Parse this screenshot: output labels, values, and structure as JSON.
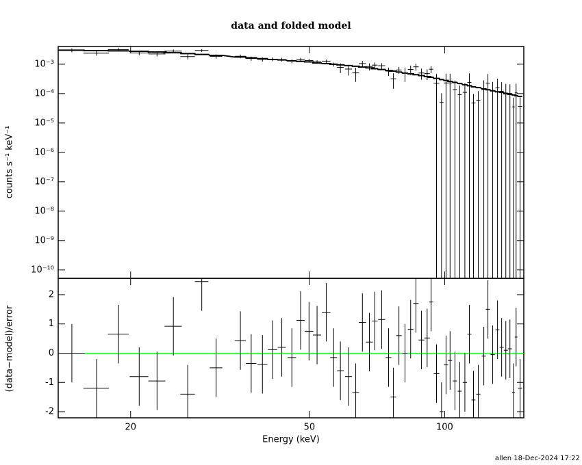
{
  "chart_data": [
    {
      "type": "errorbar",
      "title": "data and folded model",
      "ylabel": "counts s⁻¹ keV⁻¹",
      "xscale": "log",
      "yscale": "log",
      "color": "#000000",
      "model_color": "#000000",
      "x": [
        14.8,
        16.8,
        18.8,
        20.9,
        22.9,
        24.9,
        26.8,
        28.8,
        31.0,
        35.1,
        37.1,
        39.3,
        41.4,
        43.4,
        45.7,
        47.8,
        49.9,
        52.0,
        54.5,
        56.6,
        58.6,
        61.1,
        63.4,
        65.6,
        68.0,
        69.9,
        72.4,
        75.0,
        76.9,
        79.1,
        81.6,
        84.0,
        86.3,
        88.8,
        91.4,
        93.3,
        95.9,
        98.4,
        100.7,
        102.8,
        105.4,
        108.0,
        110.9,
        113.5,
        115.9,
        118.8,
        122.2,
        124.8,
        127.9,
        131.1,
        133.9,
        136.8,
        139.7,
        142.3,
        144.2,
        147.2
      ],
      "xerr": [
        1.0,
        1.1,
        1.0,
        1.0,
        1.0,
        1.1,
        1.0,
        1.0,
        1.0,
        1.0,
        1.0,
        1.0,
        1.0,
        0.9,
        1.0,
        1.0,
        1.1,
        1.1,
        1.2,
        1.0,
        1.0,
        1.1,
        1.1,
        1.2,
        1.2,
        1.0,
        1.3,
        1.1,
        1.1,
        1.1,
        1.1,
        1.2,
        1.2,
        1.3,
        1.3,
        1.0,
        1.4,
        1.0,
        1.1,
        1.1,
        1.1,
        1.1,
        1.2,
        1.2,
        1.2,
        1.3,
        1.3,
        1.3,
        1.4,
        1.4,
        1.4,
        1.4,
        1.5,
        1.0,
        1.0,
        1.6
      ],
      "values": [
        0.003,
        0.00238,
        0.00313,
        0.00242,
        0.00223,
        0.00279,
        0.00182,
        0.00294,
        0.00185,
        0.00186,
        0.00156,
        0.00146,
        0.00148,
        0.00144,
        0.00127,
        0.00146,
        0.00134,
        0.0012,
        0.00127,
        0.000978,
        0.000779,
        0.000684,
        0.000506,
        0.00105,
        0.000836,
        0.000931,
        0.000888,
        0.000583,
        0.000319,
        0.000637,
        0.0005,
        0.000663,
        0.000814,
        0.000502,
        0.000479,
        0.000675,
        0.000226,
        5e-05,
        0.00023,
        0.000231,
        0.000137,
        9.13e-05,
        0.00011,
        0.000239,
        4.76e-05,
        5.92e-05,
        0.000138,
        0.000226,
        0.000122,
        0.000156,
        0.00012,
        0.000105,
        0.000101,
        3.53e-05,
        0.000106,
        3.68e-05
      ],
      "yerr": [
        0.00045,
        0.000435,
        0.000428,
        0.000413,
        0.00039,
        0.000368,
        0.000345,
        0.000323,
        0.0003,
        0.000263,
        0.000248,
        0.000233,
        0.000218,
        0.00021,
        0.000195,
        0.000188,
        0.00018,
        0.000165,
        0.000158,
        0.00015,
        0.000285,
        0.00027,
        0.000255,
        0.00024,
        0.000225,
        0.00021,
        0.000198,
        0.000183,
        0.000174,
        0.000162,
        0.00025,
        0.000235,
        0.00022,
        0.000205,
        0.00019,
        0.00018,
        0.000237,
        5.25e-05,
        0.000242,
        0.000243,
        0.000144,
        9.59e-05,
        0.000116,
        0.000251,
        5e-05,
        6.22e-05,
        0.000145,
        0.000237,
        0.000128,
        0.000164,
        0.000126,
        0.00011,
        0.000106,
        3.71e-05,
        0.000111,
        3.86e-05
      ],
      "model": [
        0.003,
        0.0029,
        0.00285,
        0.00275,
        0.0026,
        0.00245,
        0.0023,
        0.00215,
        0.002,
        0.00175,
        0.00165,
        0.00155,
        0.00145,
        0.0014,
        0.0013,
        0.00125,
        0.0012,
        0.0011,
        0.00105,
        0.001,
        0.00095,
        0.0009,
        0.00085,
        0.0008,
        0.00075,
        0.0007,
        0.00066,
        0.00061,
        0.00058,
        0.00054,
        0.0005,
        0.00047,
        0.00044,
        0.00041,
        0.00038,
        0.00036,
        0.00033,
        0.0003,
        0.00028,
        0.00026,
        0.00024,
        0.00022,
        0.0002,
        0.000185,
        0.00017,
        0.00016,
        0.000145,
        0.000135,
        0.000125,
        0.000115,
        0.00011,
        0.0001,
        9.5e-05,
        9e-05,
        8.5e-05,
        8e-05
      ],
      "xlim": [
        13.8,
        150
      ],
      "ylim": [
        5.2e-11,
        0.004
      ],
      "yticks": [
        {
          "value": 1e-10,
          "label": "10⁻¹⁰"
        },
        {
          "value": 1e-09,
          "label": "10⁻⁹"
        },
        {
          "value": 1e-08,
          "label": "10⁻⁸"
        },
        {
          "value": 1e-07,
          "label": "10⁻⁷"
        },
        {
          "value": 1e-06,
          "label": "10⁻⁶"
        },
        {
          "value": 1e-05,
          "label": "10⁻⁵"
        },
        {
          "value": 0.0001,
          "label": "10⁻⁴"
        },
        {
          "value": 0.001,
          "label": "10⁻³"
        }
      ]
    },
    {
      "type": "errorbar",
      "ylabel": "(data−model)/error",
      "xlabel": "Energy (keV)",
      "xscale": "log",
      "color": "#000000",
      "values": [
        0.0,
        -1.2,
        0.65,
        -0.8,
        -0.95,
        0.92,
        -1.4,
        2.45,
        -0.5,
        0.43,
        -0.35,
        -0.38,
        0.12,
        0.2,
        -0.15,
        1.12,
        0.75,
        0.62,
        1.4,
        -0.15,
        -0.6,
        -0.8,
        -1.35,
        1.05,
        0.38,
        1.1,
        1.15,
        -0.15,
        -1.5,
        0.6,
        0.0,
        0.82,
        1.7,
        0.45,
        0.52,
        1.75,
        -0.7,
        -2.0,
        -0.4,
        -0.25,
        -0.95,
        -1.3,
        -1.0,
        0.65,
        -1.6,
        -1.4,
        -0.1,
        1.5,
        -0.05,
        0.8,
        0.2,
        0.1,
        0.15,
        -1.35,
        0.55,
        -1.2
      ],
      "yerr": [
        1,
        1,
        1,
        1,
        1,
        1,
        1,
        1,
        1,
        1,
        1,
        1,
        1,
        1,
        1,
        1,
        1,
        1,
        1,
        1,
        1,
        1,
        1,
        1,
        1,
        1,
        1,
        1,
        1,
        1,
        1,
        1,
        1,
        1,
        1,
        1,
        1,
        1,
        1,
        1,
        1,
        1,
        1,
        1,
        1,
        1,
        1,
        1,
        1,
        1,
        1,
        1,
        1,
        1,
        1,
        1
      ],
      "reference_line": 0,
      "reference_color": "#00ff00",
      "xlim": [
        13.8,
        150
      ],
      "ylim": [
        -2.21,
        2.56
      ],
      "xticks": [
        20,
        50,
        100
      ],
      "yticks": [
        -2,
        -1,
        0,
        1,
        2
      ]
    }
  ],
  "footer": "allen 18-Dec-2024 17:22"
}
